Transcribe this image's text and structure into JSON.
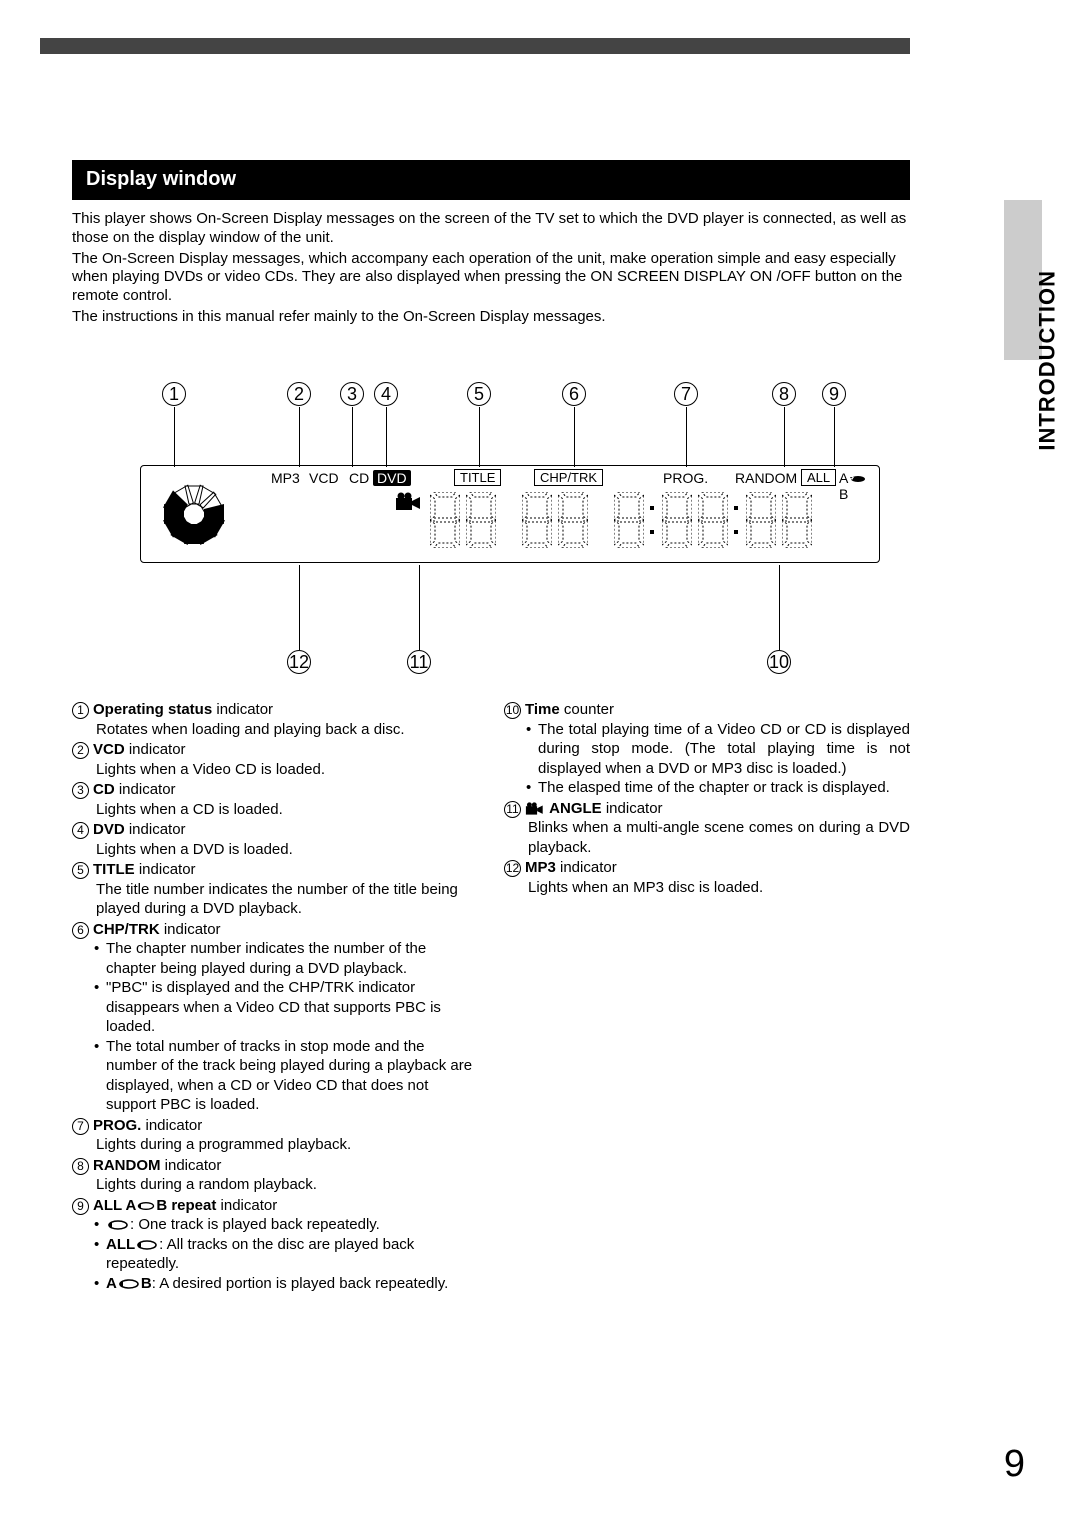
{
  "page_number": "9",
  "side_tab": "INTRODUCTION",
  "section_title": "Display window",
  "intro": {
    "p1": "This player shows On-Screen Display messages on the screen of the TV set to which the DVD player is connected, as well as those on the display window of the unit.",
    "p2": "The On-Screen Display messages, which accompany each operation of the unit, make operation simple and easy especially when playing DVDs or video CDs. They are also displayed when pressing the ON SCREEN DISPLAY ON /OFF button on the remote control.",
    "p3": "The instructions in this manual refer mainly to the On-Screen Display messages."
  },
  "display_labels": {
    "mp3": "MP3",
    "vcd": "VCD",
    "cd": "CD",
    "dvd": "DVD",
    "title": "TITLE",
    "chptrk": "CHP/TRK",
    "prog": "PROG.",
    "random": "RANDOM",
    "all": "ALL",
    "ab": "A       B"
  },
  "legend_numbers_top": [
    "1",
    "2",
    "3",
    "4",
    "5",
    "6",
    "7",
    "8",
    "9"
  ],
  "legend_numbers_bottom": [
    "12",
    "11",
    "10"
  ],
  "left_items": [
    {
      "n": "1",
      "title_bold": "Operating status",
      "title_rest": " indicator",
      "body": [
        "Rotates when loading and playing back a disc."
      ]
    },
    {
      "n": "2",
      "title_bold": "VCD",
      "title_rest": " indicator",
      "body": [
        "Lights when a Video CD is loaded."
      ]
    },
    {
      "n": "3",
      "title_bold": "CD",
      "title_rest": " indicator",
      "body": [
        "Lights when a CD is loaded."
      ]
    },
    {
      "n": "4",
      "title_bold": "DVD",
      "title_rest": " indicator",
      "body": [
        "Lights when a DVD is loaded."
      ]
    },
    {
      "n": "5",
      "title_bold": "TITLE",
      "title_rest": " indicator",
      "body": [
        "The title number indicates the number of the title being played during a DVD playback."
      ]
    },
    {
      "n": "6",
      "title_bold": "CHP/TRK",
      "title_rest": " indicator",
      "bullets": [
        "The chapter number indicates the number of the chapter being played during a DVD playback.",
        "\"PBC\" is displayed and the CHP/TRK indicator disappears when a Video CD that supports PBC is loaded.",
        "The total number of tracks in stop mode and the number of the track being played during a playback are displayed, when a CD or Video CD that does not support PBC is loaded."
      ]
    },
    {
      "n": "7",
      "title_bold": "PROG.",
      "title_rest": " indicator",
      "body": [
        "Lights during a programmed playback."
      ]
    },
    {
      "n": "8",
      "title_bold": "RANDOM",
      "title_rest": " indicator",
      "body": [
        "Lights during a random playback."
      ]
    },
    {
      "n": "9",
      "title_bold": "ALL A​___B repeat",
      "title_rest": " indicator",
      "repeat_bullets": [
        {
          "pre": "",
          "icon": "repeat",
          "post": ": One track is played back repeatedly."
        },
        {
          "pre": "ALL",
          "icon": "repeat",
          "post": ": All tracks on the disc are played back repeatedly."
        },
        {
          "pre": "A",
          "icon": "repeat",
          "post_pre": "B",
          "post": ": A desired portion is played back repeatedly."
        }
      ]
    }
  ],
  "right_items": [
    {
      "n": "10",
      "title_bold": "Time",
      "title_rest": " counter",
      "bullets": [
        "The total playing time of a Video CD or CD is displayed during stop mode. (The total playing time is not displayed when a DVD or MP3 disc is loaded.)",
        "The elasped time of the chapter or track is displayed."
      ]
    },
    {
      "n": "11",
      "title_bold": "ANGLE",
      "title_rest": " indicator",
      "has_camera": true,
      "body": [
        "Blinks when a multi-angle scene comes on during a DVD playback."
      ]
    },
    {
      "n": "12",
      "title_bold": "MP3",
      "title_rest": " indicator",
      "body": [
        "Lights when an MP3 disc is loaded."
      ]
    }
  ],
  "colors": {
    "black": "#000000",
    "grey": "#cccccc"
  }
}
